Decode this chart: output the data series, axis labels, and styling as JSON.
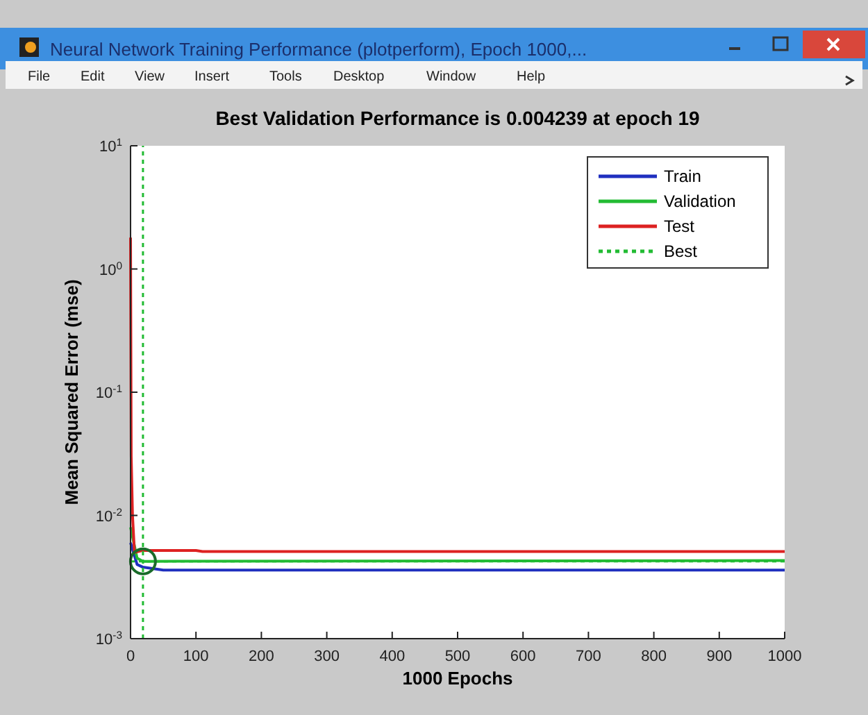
{
  "chart_data": {
    "type": "line",
    "title": "Best Validation Performance is 0.004239 at epoch 19",
    "xlabel": "1000 Epochs",
    "ylabel": "Mean Squared Error  (mse)",
    "annotations": [
      "Neural Network Training Performance (plotperform), Epoch 1000,...",
      "File",
      "Edit",
      "View",
      "Insert",
      "Tools",
      "Desktop",
      "Window",
      "Help"
    ],
    "log": "y",
    "xlim": [
      0,
      1000
    ],
    "xticks": [
      0,
      100,
      200,
      300,
      400,
      500,
      600,
      700,
      800,
      900,
      1000
    ],
    "ylim": [
      0.001,
      10
    ],
    "yticks": [
      {
        "value": 0.001,
        "label": "10$^{-3}$"
      },
      {
        "value": 0.01,
        "label": "10$^{-2}$"
      },
      {
        "value": 0.1,
        "label": "10$^{-1}$"
      },
      {
        "value": 1,
        "label": "10$^{0}$"
      },
      {
        "value": 10,
        "label": "10$^{1}$"
      }
    ],
    "grid": false,
    "legend": "top right",
    "series": [
      {
        "name": "Train",
        "color": "#1f2fbf",
        "x": [
          0,
          10,
          19,
          50,
          1000
        ],
        "values": [
          0.006,
          0.004,
          0.0038,
          0.0036,
          0.0036
        ]
      },
      {
        "name": "Validation",
        "color": "#22bb33",
        "x": [
          0,
          10,
          19,
          1000
        ],
        "values": [
          0.008,
          0.0045,
          0.004239,
          0.0043
        ]
      },
      {
        "name": "Test",
        "color": "#dd2222",
        "x": [
          0,
          1,
          3,
          6,
          19,
          100,
          110,
          1000
        ],
        "values": [
          1.8,
          0.03,
          0.01,
          0.005,
          0.0052,
          0.0052,
          0.0051,
          0.0051
        ]
      },
      {
        "name": "Best",
        "color": "#22bb33",
        "line_style": "dotted",
        "x": [
          19,
          19
        ],
        "values": [
          0.001,
          10
        ]
      },
      {
        "type": "scatter",
        "color": "#1a6b2a",
        "x": [
          19
        ],
        "values": [
          0.004239
        ]
      }
    ],
    "ref_lines": [
      {
        "axis": "y",
        "value": 0.004239,
        "color": "#22bb33",
        "line_style": "dotted"
      }
    ]
  }
}
